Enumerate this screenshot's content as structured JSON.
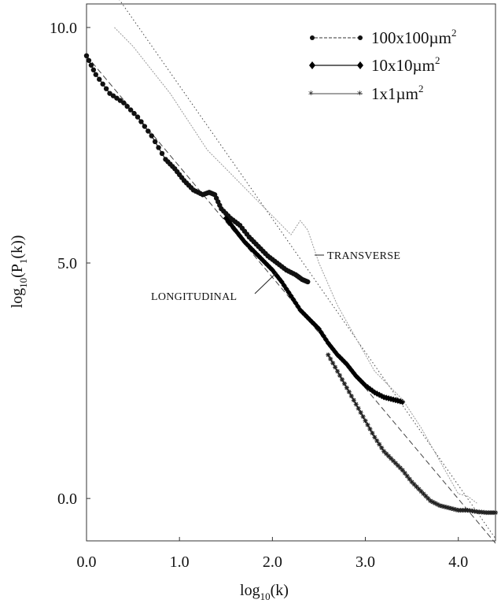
{
  "chart_data": {
    "type": "line",
    "title": "",
    "xlabel": "log10(k)",
    "ylabel": "log10(P1(k))",
    "xlim": [
      0,
      4.4
    ],
    "ylim": [
      -0.9,
      10.5
    ],
    "x_ticks": [
      "0.0",
      "1.0",
      "2.0",
      "3.0",
      "4.0"
    ],
    "y_ticks": [
      "0.0",
      "5.0",
      "10.0"
    ],
    "grid": false,
    "legend_position": "top-right",
    "series": [
      {
        "name": "100x100µm2",
        "marker": "dot",
        "color": "#111111",
        "points": [
          [
            0.0,
            9.4
          ],
          [
            0.1,
            9.0
          ],
          [
            0.25,
            8.6
          ],
          [
            0.4,
            8.4
          ],
          [
            0.55,
            8.1
          ],
          [
            0.7,
            7.7
          ],
          [
            0.85,
            7.2
          ],
          [
            0.95,
            7.0
          ],
          [
            1.05,
            6.75
          ],
          [
            1.15,
            6.55
          ],
          [
            1.25,
            6.45
          ],
          [
            1.32,
            6.5
          ],
          [
            1.38,
            6.45
          ],
          [
            1.45,
            6.15
          ],
          [
            1.55,
            5.95
          ],
          [
            1.65,
            5.8
          ],
          [
            1.75,
            5.55
          ],
          [
            1.85,
            5.35
          ],
          [
            1.95,
            5.15
          ],
          [
            2.05,
            5.0
          ],
          [
            2.15,
            4.85
          ],
          [
            2.25,
            4.75
          ],
          [
            2.32,
            4.65
          ],
          [
            2.38,
            4.6
          ]
        ]
      },
      {
        "name": "10x10µm2",
        "marker": "diamond",
        "color": "#000000",
        "points": [
          [
            1.5,
            5.95
          ],
          [
            1.6,
            5.7
          ],
          [
            1.7,
            5.45
          ],
          [
            1.8,
            5.25
          ],
          [
            1.9,
            5.05
          ],
          [
            2.0,
            4.85
          ],
          [
            2.1,
            4.6
          ],
          [
            2.2,
            4.3
          ],
          [
            2.3,
            4.0
          ],
          [
            2.4,
            3.8
          ],
          [
            2.5,
            3.6
          ],
          [
            2.6,
            3.3
          ],
          [
            2.7,
            3.05
          ],
          [
            2.8,
            2.85
          ],
          [
            2.9,
            2.6
          ],
          [
            3.0,
            2.4
          ],
          [
            3.1,
            2.25
          ],
          [
            3.2,
            2.15
          ],
          [
            3.3,
            2.1
          ],
          [
            3.4,
            2.05
          ]
        ]
      },
      {
        "name": "1x1µm2",
        "marker": "star",
        "color": "#222222",
        "points": [
          [
            2.6,
            3.05
          ],
          [
            2.7,
            2.7
          ],
          [
            2.8,
            2.35
          ],
          [
            2.9,
            2.0
          ],
          [
            3.0,
            1.65
          ],
          [
            3.1,
            1.3
          ],
          [
            3.2,
            1.0
          ],
          [
            3.3,
            0.8
          ],
          [
            3.4,
            0.6
          ],
          [
            3.5,
            0.35
          ],
          [
            3.6,
            0.15
          ],
          [
            3.7,
            -0.05
          ],
          [
            3.8,
            -0.15
          ],
          [
            3.9,
            -0.2
          ],
          [
            4.0,
            -0.25
          ],
          [
            4.1,
            -0.25
          ],
          [
            4.2,
            -0.28
          ],
          [
            4.3,
            -0.3
          ],
          [
            4.4,
            -0.3
          ]
        ]
      },
      {
        "name": "transverse",
        "marker": "none",
        "color": "#9a9a9a",
        "points": [
          [
            0.3,
            10.0
          ],
          [
            0.5,
            9.6
          ],
          [
            0.7,
            9.1
          ],
          [
            0.9,
            8.6
          ],
          [
            1.1,
            8.0
          ],
          [
            1.3,
            7.4
          ],
          [
            1.5,
            7.0
          ],
          [
            1.7,
            6.6
          ],
          [
            1.9,
            6.2
          ],
          [
            2.1,
            5.8
          ],
          [
            2.2,
            5.6
          ],
          [
            2.3,
            5.9
          ],
          [
            2.38,
            5.7
          ],
          [
            2.5,
            5.0
          ],
          [
            2.7,
            4.1
          ],
          [
            2.9,
            3.4
          ],
          [
            3.1,
            2.7
          ],
          [
            3.2,
            2.5
          ],
          [
            3.3,
            2.3
          ],
          [
            3.4,
            2.1
          ],
          [
            3.6,
            1.5
          ],
          [
            3.8,
            0.8
          ],
          [
            4.0,
            0.1
          ],
          [
            4.1,
            0.05
          ],
          [
            4.2,
            -0.1
          ]
        ]
      }
    ],
    "fit_lines": [
      {
        "style": "dashed",
        "x": [
          0.0,
          4.4
        ],
        "y": [
          9.4,
          -0.95
        ]
      },
      {
        "style": "dotted",
        "x": [
          0.35,
          4.4
        ],
        "y": [
          10.6,
          -0.85
        ]
      }
    ],
    "annotations": [
      "TRANSVERSE",
      "LONGITUDINAL"
    ]
  },
  "legend": {
    "entries": [
      {
        "name": "100x100µm2",
        "base": "100x100µm",
        "sup": "2",
        "marker": "dot"
      },
      {
        "name": "10x10µm2",
        "base": "10x10µm",
        "sup": "2",
        "marker": "diamond"
      },
      {
        "name": "1x1µm2",
        "base": "1x1µm",
        "sup": "2",
        "marker": "star"
      }
    ]
  },
  "labels": {
    "x_main": "log",
    "x_sub": "10",
    "x_rest": "(k)",
    "y_main": "log",
    "y_sub": "10",
    "y_mid": "(P",
    "y_sub2": "1",
    "y_rest": "(k))",
    "transverse": "TRANSVERSE",
    "longitudinal": "LONGITUDINAL"
  }
}
